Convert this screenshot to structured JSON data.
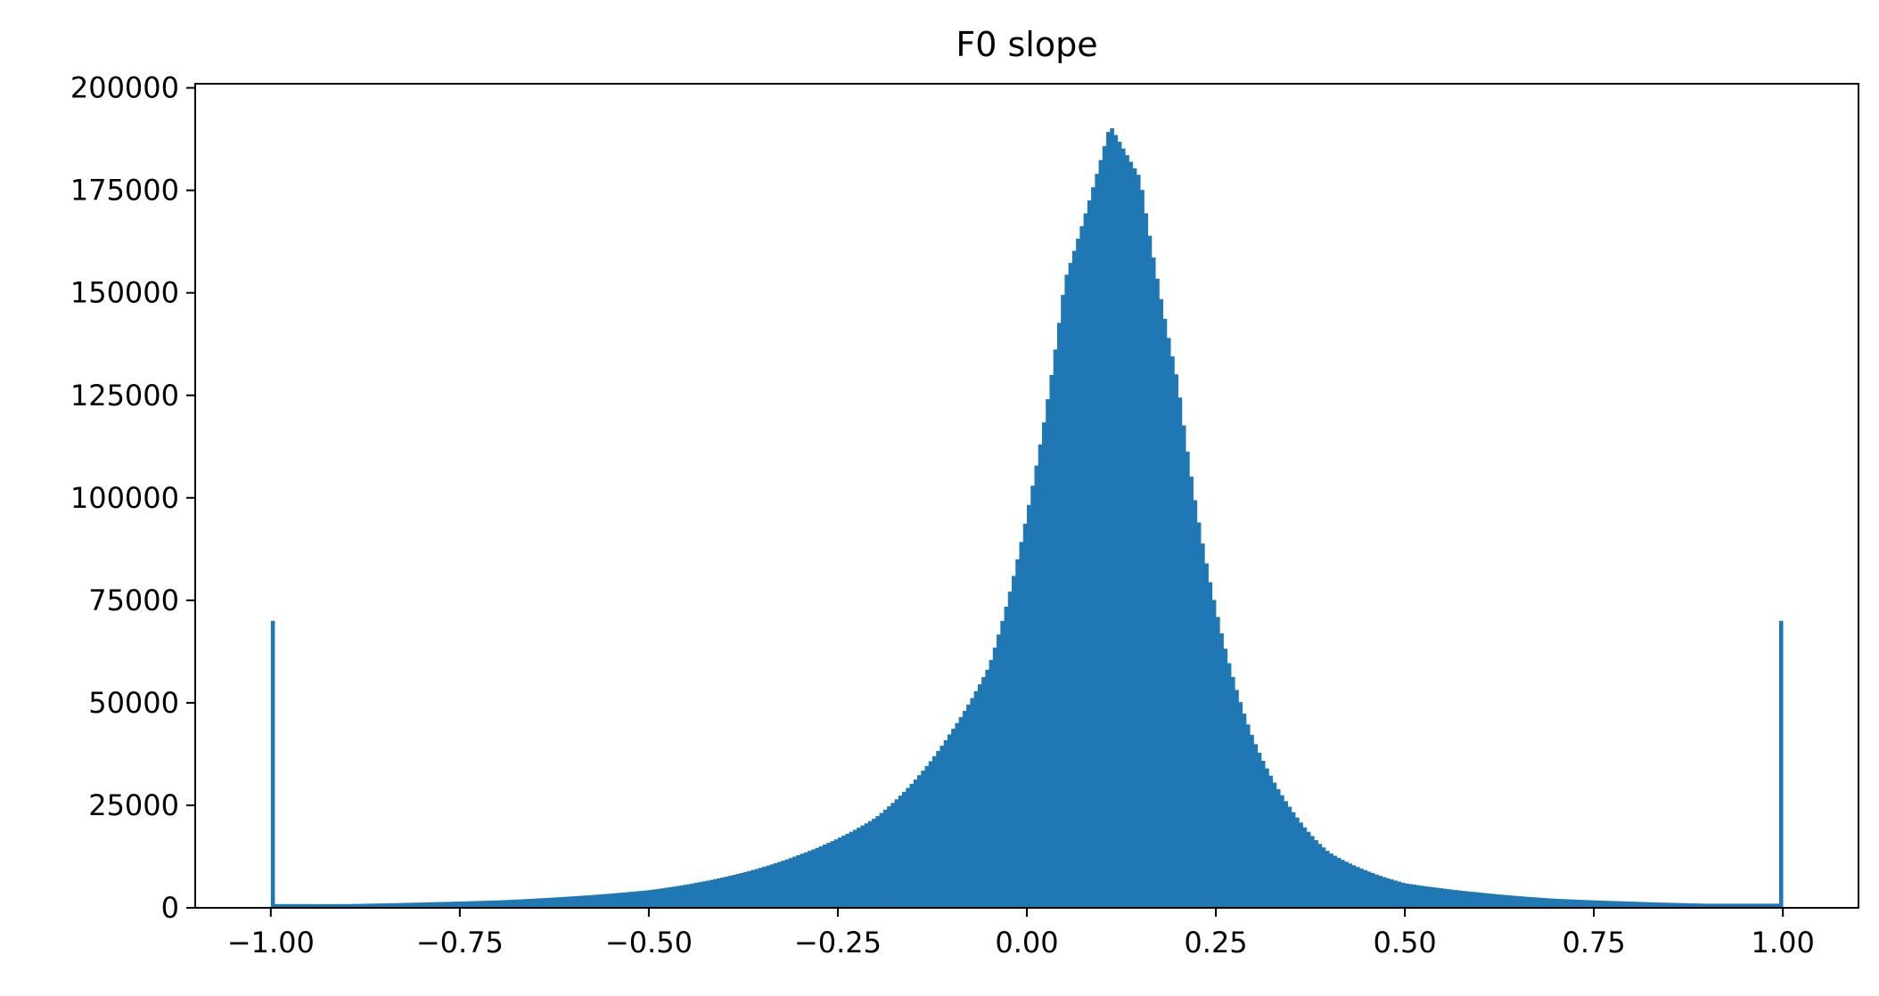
{
  "chart_data": {
    "type": "bar",
    "title": "F0 slope",
    "xlabel": "",
    "ylabel": "",
    "xlim": [
      -1.1,
      1.1
    ],
    "ylim": [
      0,
      201000
    ],
    "grid": false,
    "legend": "none",
    "bar_color": "#1f77b4",
    "x_ticks": [
      -1.0,
      -0.75,
      -0.5,
      -0.25,
      0.0,
      0.25,
      0.5,
      0.75,
      1.0
    ],
    "x_tick_labels": [
      "−1.00",
      "−0.75",
      "−0.50",
      "−0.25",
      "0.00",
      "0.25",
      "0.50",
      "0.75",
      "1.00"
    ],
    "y_ticks": [
      0,
      25000,
      50000,
      75000,
      100000,
      125000,
      150000,
      175000,
      200000
    ],
    "y_tick_labels": [
      "0",
      "25000",
      "50000",
      "75000",
      "100000",
      "125000",
      "150000",
      "175000",
      "200000"
    ],
    "range": [
      -1.0,
      1.0
    ],
    "peak_x": 0.11,
    "bins": [
      {
        "x": -1.0,
        "count": 70000
      },
      {
        "x": -0.9,
        "count": 900
      },
      {
        "x": -0.8,
        "count": 1300
      },
      {
        "x": -0.7,
        "count": 1800
      },
      {
        "x": -0.6,
        "count": 2800
      },
      {
        "x": -0.5,
        "count": 4300
      },
      {
        "x": -0.4,
        "count": 7500
      },
      {
        "x": -0.3,
        "count": 13000
      },
      {
        "x": -0.2,
        "count": 22000
      },
      {
        "x": -0.1,
        "count": 43000
      },
      {
        "x": -0.05,
        "count": 59000
      },
      {
        "x": 0.0,
        "count": 96000
      },
      {
        "x": 0.05,
        "count": 153000
      },
      {
        "x": 0.11,
        "count": 191000
      },
      {
        "x": 0.15,
        "count": 178000
      },
      {
        "x": 0.2,
        "count": 128000
      },
      {
        "x": 0.25,
        "count": 73000
      },
      {
        "x": 0.3,
        "count": 41000
      },
      {
        "x": 0.35,
        "count": 24000
      },
      {
        "x": 0.4,
        "count": 13500
      },
      {
        "x": 0.5,
        "count": 6000
      },
      {
        "x": 0.6,
        "count": 3700
      },
      {
        "x": 0.7,
        "count": 2200
      },
      {
        "x": 0.8,
        "count": 1500
      },
      {
        "x": 0.9,
        "count": 1000
      },
      {
        "x": 1.0,
        "count": 70000
      }
    ]
  }
}
